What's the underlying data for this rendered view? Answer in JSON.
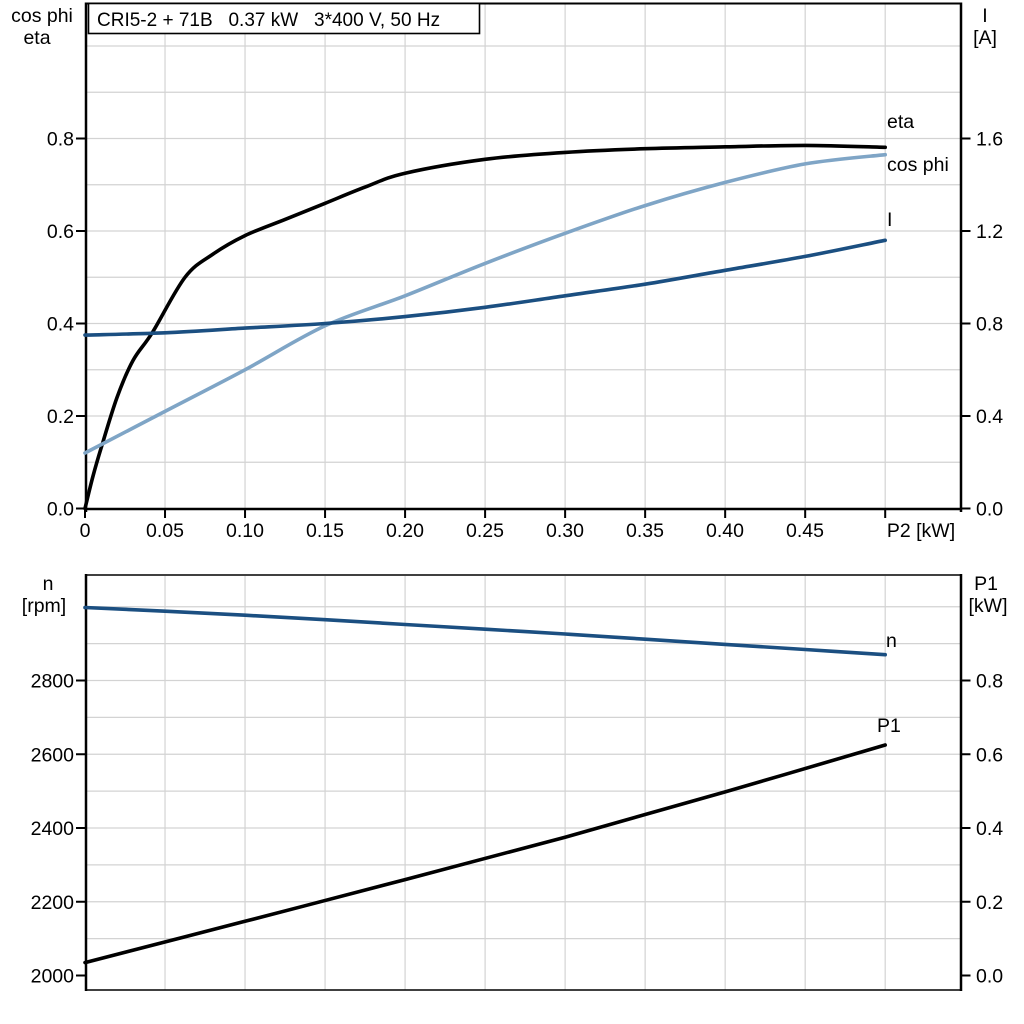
{
  "top_chart": {
    "title": "CRI5-2 + 71B   0.37 kW   3*400 V, 50 Hz",
    "left_axis": {
      "title_lines": [
        "cos phi",
        "eta"
      ],
      "ticks": [
        "0.0",
        "0.2",
        "0.4",
        "0.6",
        "0.8"
      ]
    },
    "right_axis": {
      "title_lines": [
        "I",
        "[A]"
      ],
      "ticks": [
        "0.0",
        "0.4",
        "0.8",
        "1.2",
        "1.6"
      ]
    },
    "x_axis": {
      "title": "P2 [kW]",
      "ticks": [
        "0",
        "0.05",
        "0.10",
        "0.15",
        "0.20",
        "0.25",
        "0.30",
        "0.35",
        "0.40",
        "0.45"
      ]
    },
    "curve_labels": {
      "eta": "eta",
      "cos_phi": "cos phi",
      "current": "I"
    }
  },
  "bottom_chart": {
    "left_axis": {
      "title_lines": [
        "n",
        "[rpm]"
      ],
      "ticks": [
        "2000",
        "2200",
        "2400",
        "2600",
        "2800"
      ]
    },
    "right_axis": {
      "title_lines": [
        "P1",
        "[kW]"
      ],
      "ticks": [
        "0.0",
        "0.2",
        "0.4",
        "0.6",
        "0.8"
      ]
    },
    "curve_labels": {
      "n": "n",
      "p1": "P1"
    }
  },
  "colors": {
    "black": "#000000",
    "dark_blue": "#1B4F81",
    "light_blue": "#7FA5C6",
    "grid": "#D3D3D3",
    "background": "#FFFFFF"
  },
  "chart_data": [
    {
      "type": "line",
      "title": "CRI5-2 + 71B   0.37 kW   3*400 V, 50 Hz",
      "xlabel": "P2 [kW]",
      "xlim": [
        0,
        0.548
      ],
      "xtick_step": 0.05,
      "ylabel_left": "cos phi / eta",
      "ylim_left": [
        0,
        1.09
      ],
      "ylabel_right": "I [A]",
      "ylim_right": [
        0,
        2.18
      ],
      "grid": true,
      "series": [
        {
          "name": "eta",
          "axis": "left",
          "color": "#000000",
          "x": [
            0,
            0.005,
            0.01,
            0.02,
            0.03,
            0.042,
            0.0625,
            0.08,
            0.1,
            0.125,
            0.15,
            0.175,
            0.2,
            0.25,
            0.3,
            0.35,
            0.4,
            0.45,
            0.5
          ],
          "y": [
            0,
            0.07,
            0.13,
            0.24,
            0.32,
            0.38,
            0.5,
            0.55,
            0.59,
            0.625,
            0.66,
            0.695,
            0.725,
            0.755,
            0.77,
            0.778,
            0.782,
            0.785,
            0.781
          ]
        },
        {
          "name": "cos phi",
          "axis": "left",
          "color": "#7FA5C6",
          "x": [
            0,
            0.05,
            0.1,
            0.15,
            0.2,
            0.25,
            0.3,
            0.35,
            0.4,
            0.45,
            0.5
          ],
          "y": [
            0.12,
            0.21,
            0.3,
            0.395,
            0.46,
            0.53,
            0.595,
            0.655,
            0.705,
            0.745,
            0.765
          ]
        },
        {
          "name": "I",
          "axis": "right",
          "color": "#1B4F81",
          "x": [
            0,
            0.05,
            0.1,
            0.15,
            0.2,
            0.25,
            0.3,
            0.35,
            0.4,
            0.45,
            0.5
          ],
          "y": [
            0.75,
            0.76,
            0.78,
            0.8,
            0.83,
            0.87,
            0.92,
            0.97,
            1.03,
            1.09,
            1.16
          ]
        }
      ]
    },
    {
      "type": "line",
      "xlabel": "",
      "xlim": [
        0,
        0.548
      ],
      "xtick_step": 0.05,
      "ylabel_left": "n [rpm]",
      "ylim_left": [
        1961,
        3086
      ],
      "ylabel_right": "P1 [kW]",
      "ylim_right": [
        -0.04,
        1.086
      ],
      "grid": true,
      "series": [
        {
          "name": "n",
          "axis": "left",
          "color": "#1B4F81",
          "x": [
            0,
            0.05,
            0.1,
            0.15,
            0.2,
            0.25,
            0.3,
            0.35,
            0.4,
            0.45,
            0.5
          ],
          "y": [
            2998,
            2988,
            2977,
            2965,
            2952,
            2939,
            2926,
            2912,
            2898,
            2884,
            2870
          ]
        },
        {
          "name": "P1",
          "axis": "right",
          "color": "#000000",
          "x": [
            0,
            0.1,
            0.2,
            0.3,
            0.4,
            0.5
          ],
          "y": [
            0.035,
            0.147,
            0.26,
            0.375,
            0.498,
            0.625
          ]
        }
      ]
    }
  ]
}
